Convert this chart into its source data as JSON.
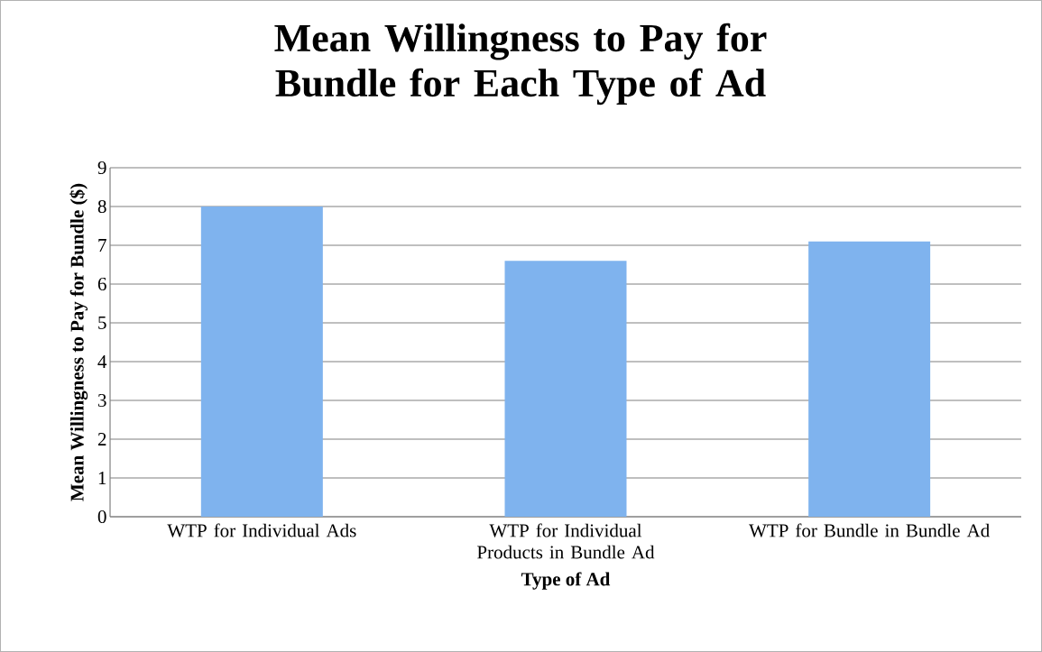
{
  "chart_data": {
    "type": "bar",
    "title": "Mean Willingness to Pay for Bundle for Each Type of Ad",
    "xlabel": "Type of Ad",
    "ylabel": "Mean Willingness to Pay for Bundle ($)",
    "categories": [
      "WTP for Individual Ads",
      "WTP for Individual Products in Bundle Ad",
      "WTP for Bundle in Bundle Ad"
    ],
    "values": [
      8.0,
      6.6,
      7.1
    ],
    "color": "#7fb3ee",
    "ylim": [
      0,
      9
    ],
    "yticks": [
      0,
      1,
      2,
      3,
      4,
      5,
      6,
      7,
      8,
      9
    ],
    "grid": "y"
  }
}
